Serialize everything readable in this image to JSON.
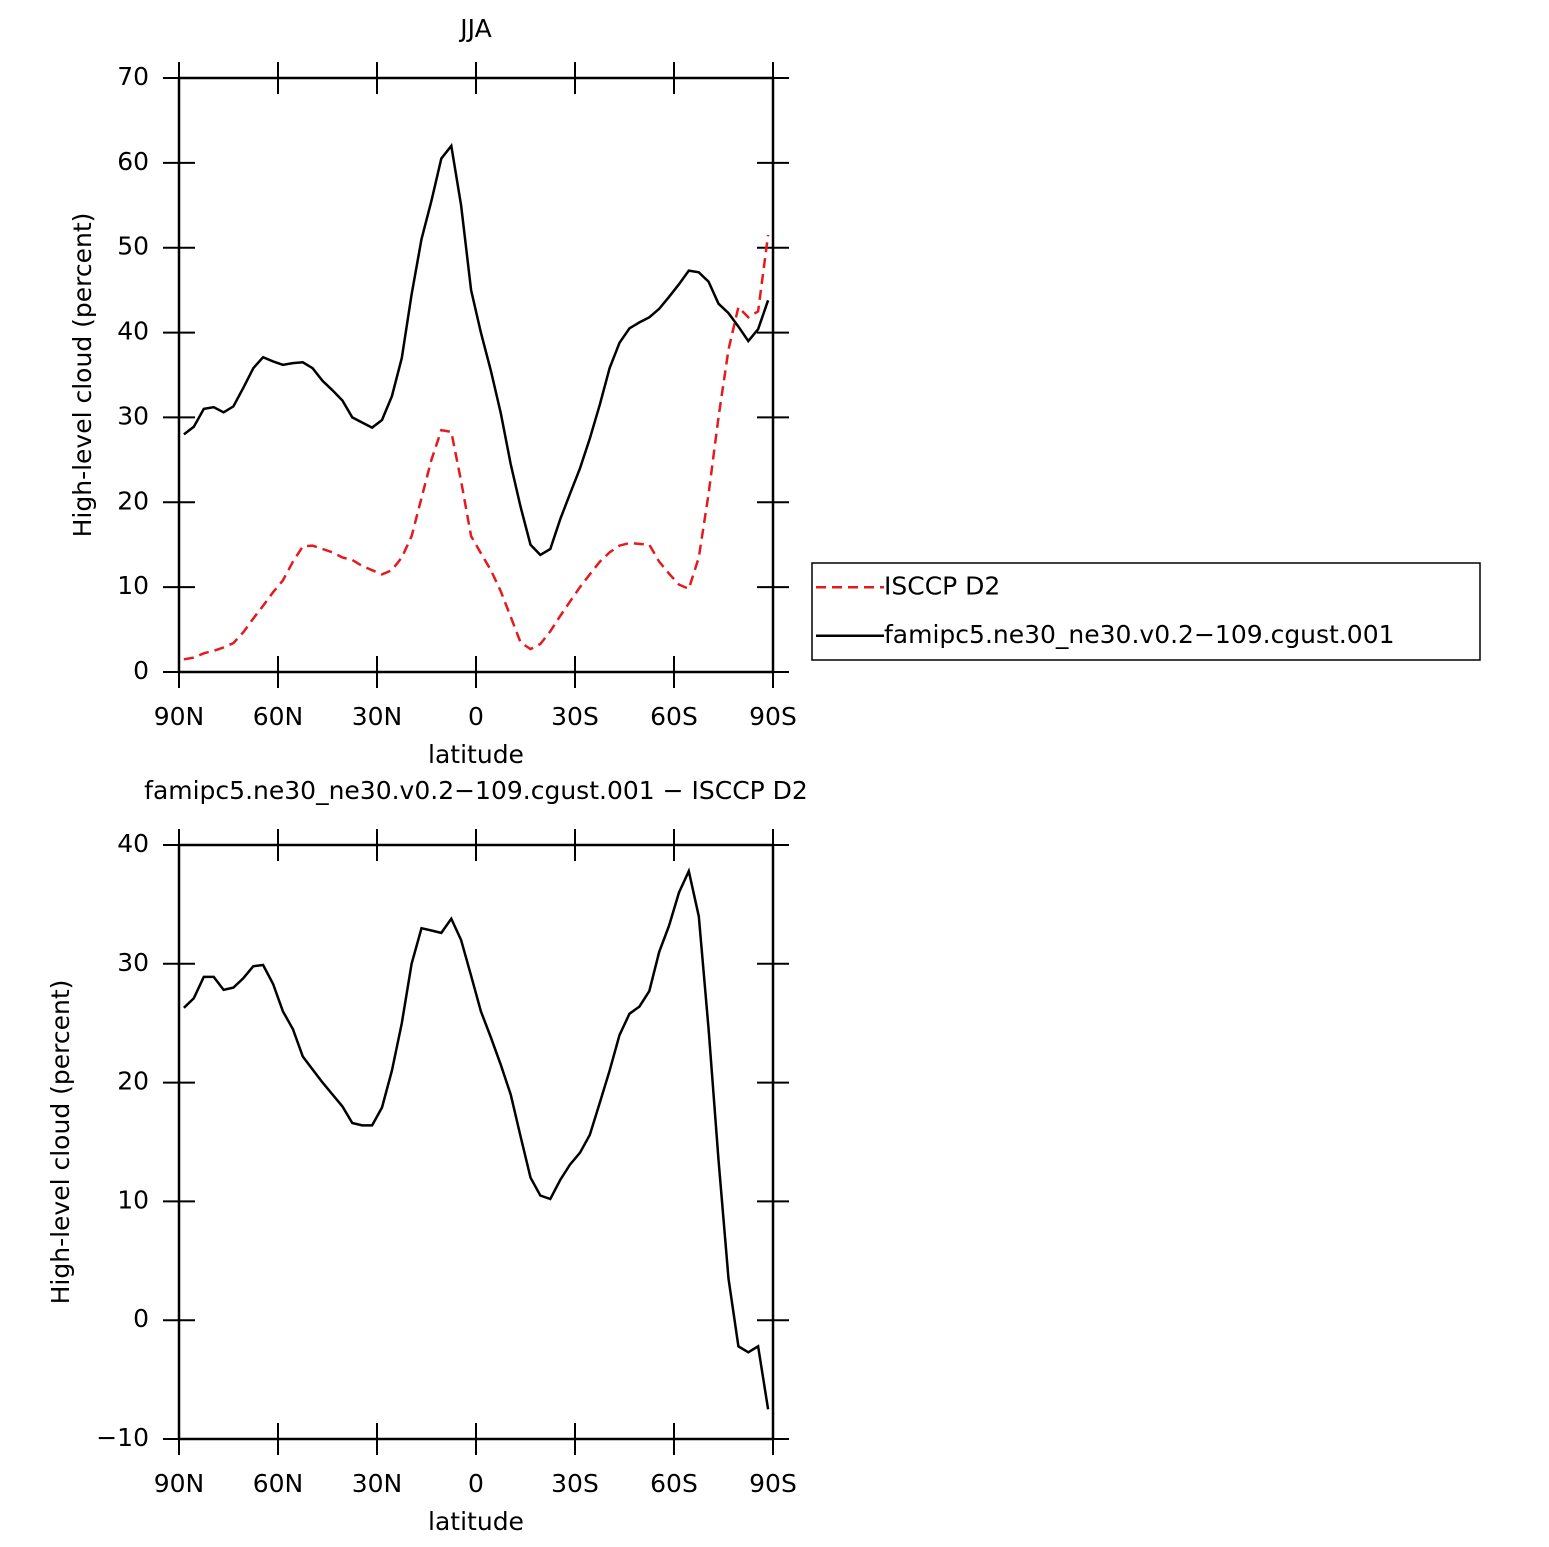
{
  "chart_data": [
    {
      "type": "line",
      "title": "JJA",
      "xlabel": "latitude",
      "ylabel": "High-level cloud (percent)",
      "xlim": [
        90,
        -90
      ],
      "xticks": [
        {
          "value": 90,
          "label": "90N"
        },
        {
          "value": 60,
          "label": "60N"
        },
        {
          "value": 30,
          "label": "30N"
        },
        0,
        {
          "value": -30,
          "label": "30S"
        },
        {
          "value": -60,
          "label": "60S"
        },
        {
          "value": -90,
          "label": "90S"
        }
      ],
      "ylim": [
        0,
        70
      ],
      "yticks": [
        0,
        10,
        20,
        30,
        40,
        50,
        60,
        70
      ],
      "x": [
        88.5,
        85.5,
        82.5,
        79.5,
        76.5,
        73.5,
        70.5,
        67.5,
        64.5,
        61.5,
        58.5,
        55.5,
        52.5,
        49.5,
        46.5,
        43.5,
        40.5,
        37.5,
        34.5,
        31.5,
        28.5,
        25.5,
        22.5,
        19.5,
        16.5,
        13.5,
        10.5,
        7.5,
        4.5,
        1.5,
        -1.5,
        -4.5,
        -7.5,
        -10.5,
        -13.5,
        -16.5,
        -19.5,
        -22.5,
        -25.5,
        -28.5,
        -31.5,
        -34.5,
        -37.5,
        -40.5,
        -43.5,
        -46.5,
        -49.5,
        -52.5,
        -55.5,
        -58.5,
        -61.5,
        -64.5,
        -67.5,
        -70.5,
        -73.5,
        -76.5,
        -79.5,
        -82.5,
        -85.5,
        -88.5
      ],
      "series": [
        {
          "name": "ISCCP D2",
          "color": "#e41a1c",
          "dash": true,
          "values": [
            1.5,
            1.7,
            2.2,
            2.5,
            2.9,
            3.4,
            4.7,
            6.3,
            7.8,
            9.4,
            10.8,
            13,
            14.8,
            14.9,
            14.5,
            14.1,
            13.5,
            13.2,
            12.5,
            12,
            11.5,
            12,
            13.5,
            16,
            20.5,
            25,
            28.5,
            28.3,
            22.5,
            16,
            14,
            12,
            9.5,
            6.5,
            3.5,
            2.7,
            3.3,
            4.8,
            6.6,
            8.3,
            10,
            11.5,
            13,
            14.1,
            14.9,
            15.2,
            15.1,
            15,
            13,
            11.6,
            10.3,
            9.8,
            13.5,
            21,
            30,
            38,
            43,
            41.8,
            42.5,
            51.5
          ]
        },
        {
          "name": "famipc5.ne30_ne30.v0.2−109.cgust.001",
          "color": "#000000",
          "dash": false,
          "values": [
            28,
            28.9,
            31,
            31.2,
            30.6,
            31.3,
            33.5,
            35.8,
            37.1,
            36.6,
            36.2,
            36.4,
            36.5,
            35.8,
            34.3,
            33.2,
            32,
            30,
            29.4,
            28.8,
            29.7,
            32.5,
            37,
            44.5,
            51,
            55.5,
            60.5,
            62,
            55,
            45,
            40,
            35.5,
            30.5,
            24.5,
            19.5,
            15,
            13.8,
            14.5,
            18,
            21,
            24,
            27.5,
            31.5,
            35.8,
            38.8,
            40.5,
            41.2,
            41.8,
            42.8,
            44.2,
            45.7,
            47.3,
            47.1,
            46,
            43.4,
            42.3,
            40.7,
            39,
            40.4,
            43.8
          ]
        }
      ],
      "legend": "right"
    },
    {
      "type": "line",
      "title": "famipc5.ne30_ne30.v0.2−109.cgust.001 − ISCCP D2",
      "xlabel": "latitude",
      "ylabel": "High-level cloud (percent)",
      "xlim": [
        90,
        -90
      ],
      "xticks": [
        {
          "value": 90,
          "label": "90N"
        },
        {
          "value": 60,
          "label": "60N"
        },
        {
          "value": 30,
          "label": "30N"
        },
        0,
        {
          "value": -30,
          "label": "30S"
        },
        {
          "value": -60,
          "label": "60S"
        },
        {
          "value": -90,
          "label": "90S"
        }
      ],
      "ylim": [
        -10,
        40
      ],
      "yticks": [
        {
          "value": -10,
          "label": "−10"
        },
        0,
        10,
        20,
        30,
        40
      ],
      "x": [
        88.5,
        85.5,
        82.5,
        79.5,
        76.5,
        73.5,
        70.5,
        67.5,
        64.5,
        61.5,
        58.5,
        55.5,
        52.5,
        49.5,
        46.5,
        43.5,
        40.5,
        37.5,
        34.5,
        31.5,
        28.5,
        25.5,
        22.5,
        19.5,
        16.5,
        13.5,
        10.5,
        7.5,
        4.5,
        1.5,
        -1.5,
        -4.5,
        -7.5,
        -10.5,
        -13.5,
        -16.5,
        -19.5,
        -22.5,
        -25.5,
        -28.5,
        -31.5,
        -34.5,
        -37.5,
        -40.5,
        -43.5,
        -46.5,
        -49.5,
        -52.5,
        -55.5,
        -58.5,
        -61.5,
        -64.5,
        -67.5,
        -70.5,
        -73.5,
        -76.5,
        -79.5,
        -82.5,
        -85.5,
        -88.5
      ],
      "series": [
        {
          "color": "#000000",
          "dash": false,
          "values": [
            26.3,
            27.1,
            28.9,
            28.9,
            27.8,
            28,
            28.8,
            29.8,
            29.9,
            28.3,
            26,
            24.5,
            22.2,
            21.1,
            20,
            19,
            18,
            16.6,
            16.4,
            16.4,
            17.9,
            21,
            25,
            30,
            33,
            32.8,
            32.6,
            33.8,
            32,
            29,
            26,
            23.8,
            21.5,
            19,
            15.5,
            12,
            10.5,
            10.2,
            11.8,
            13.1,
            14.1,
            15.6,
            18.3,
            21,
            24,
            25.8,
            26.4,
            27.7,
            31,
            33.2,
            36,
            37.8,
            34,
            24.5,
            13.5,
            3.5,
            -2.2,
            -2.7,
            -2.2,
            -7.5
          ]
        }
      ]
    }
  ]
}
